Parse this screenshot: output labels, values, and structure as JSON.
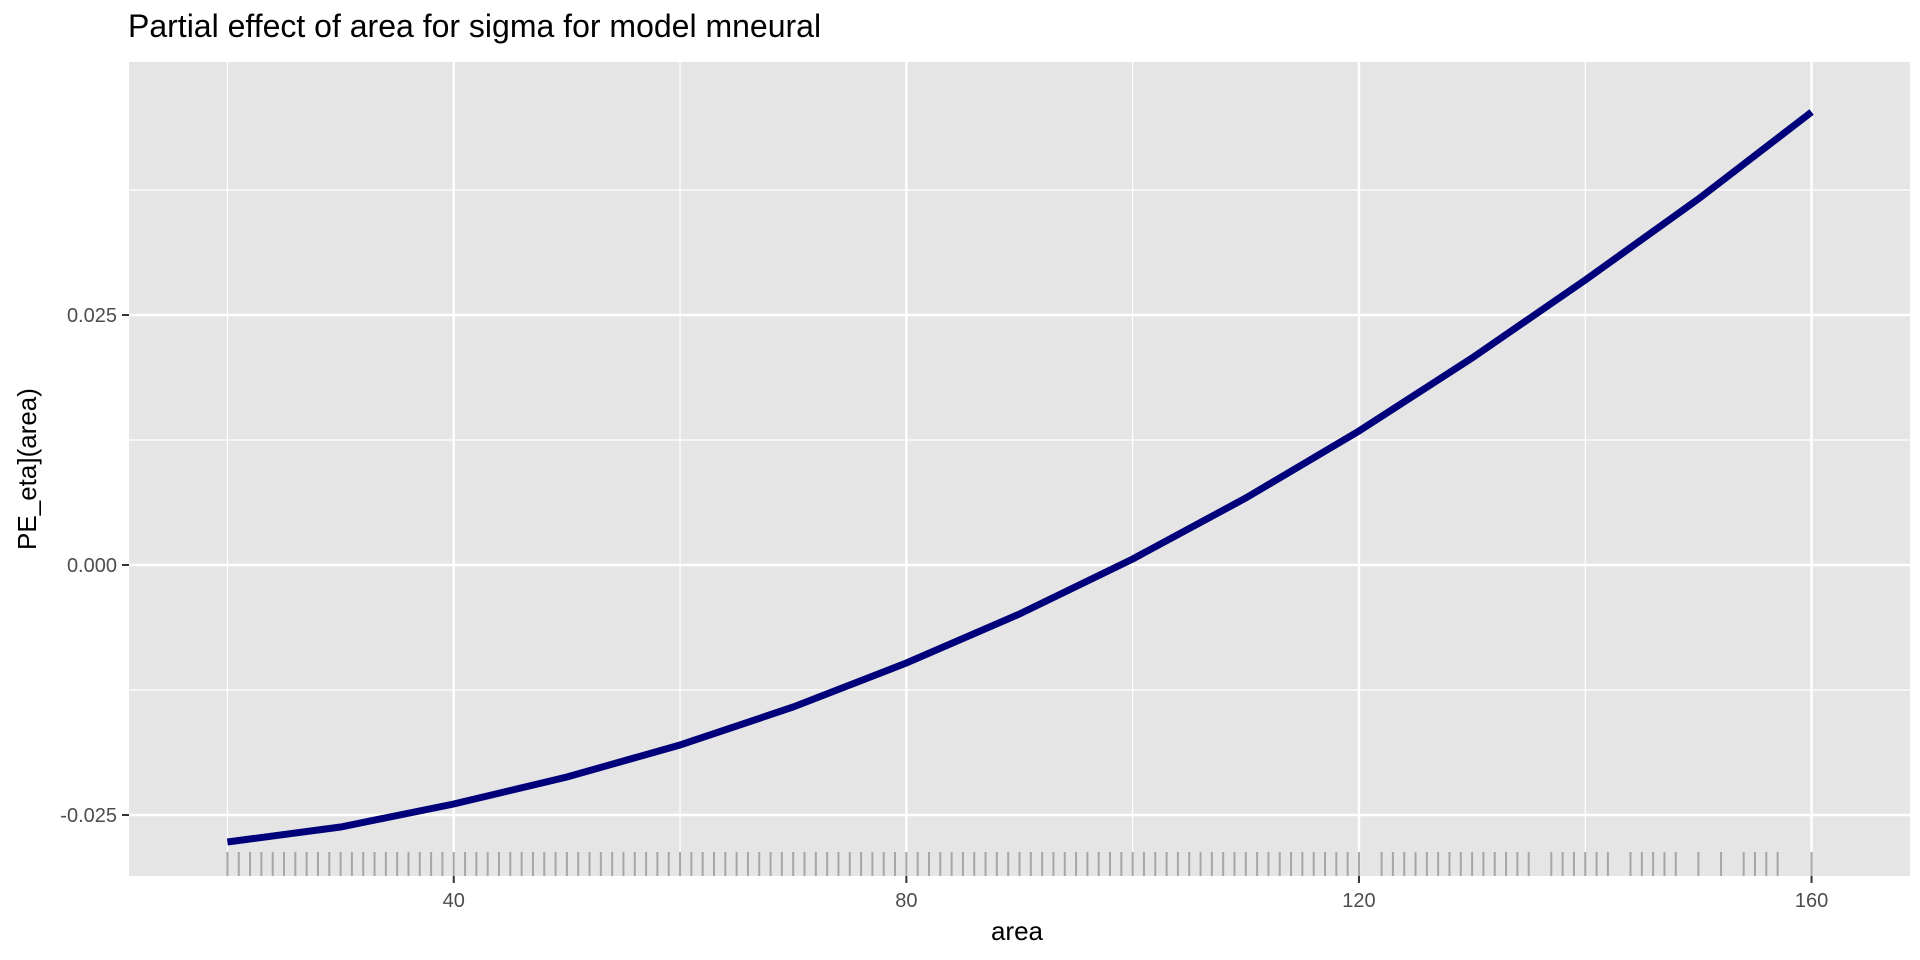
{
  "chart_data": {
    "type": "line",
    "title": "Partial effect of area for sigma for model mneural",
    "xlabel": "area",
    "ylabel": "PE_eta](area)",
    "xlim": [
      11.3,
      168.7
    ],
    "ylim": [
      -0.0311,
      0.0503
    ],
    "x_ticks": [
      40,
      80,
      120,
      160
    ],
    "x_tick_labels": [
      "40",
      "80",
      "120",
      "160"
    ],
    "y_ticks": [
      -0.025,
      0.0,
      0.025
    ],
    "y_tick_labels": [
      "-0.025",
      "0.000",
      "0.025"
    ],
    "grid": true,
    "colors": {
      "panel": "#e5e5e5",
      "grid": "#ffffff",
      "line": "#00007a",
      "rug": "#a6a6a6"
    },
    "series": [
      {
        "x": [
          20,
          30,
          40,
          50,
          60,
          70,
          80,
          90,
          100,
          110,
          120,
          130,
          140,
          150,
          160
        ],
        "y": [
          -0.0277,
          -0.0262,
          -0.0239,
          -0.0212,
          -0.018,
          -0.0142,
          -0.0098,
          -0.0049,
          0.0006,
          0.0067,
          0.0134,
          0.0207,
          0.0285,
          0.0366,
          0.0453
        ]
      }
    ],
    "rug_x": [
      20,
      21,
      22,
      23,
      24,
      25,
      26,
      27,
      28,
      29,
      30,
      31,
      32,
      33,
      34,
      35,
      36,
      37,
      38,
      39,
      40,
      41,
      42,
      43,
      44,
      45,
      46,
      47,
      48,
      49,
      50,
      51,
      52,
      53,
      54,
      55,
      56,
      57,
      58,
      59,
      60,
      61,
      62,
      63,
      64,
      65,
      66,
      67,
      68,
      69,
      70,
      71,
      72,
      73,
      74,
      75,
      76,
      77,
      78,
      79,
      80,
      81,
      82,
      83,
      84,
      85,
      86,
      87,
      88,
      89,
      90,
      91,
      92,
      93,
      94,
      95,
      96,
      97,
      98,
      99,
      100,
      101,
      102,
      103,
      104,
      105,
      106,
      107,
      108,
      109,
      110,
      111,
      112,
      113,
      114,
      115,
      116,
      117,
      118,
      119,
      120,
      122,
      123,
      124,
      125,
      126,
      127,
      128,
      129,
      130,
      131,
      132,
      133,
      134,
      135,
      137,
      138,
      139,
      140,
      141,
      142,
      144,
      145,
      146,
      147,
      148,
      150,
      152,
      154,
      155,
      156,
      157,
      160
    ]
  }
}
